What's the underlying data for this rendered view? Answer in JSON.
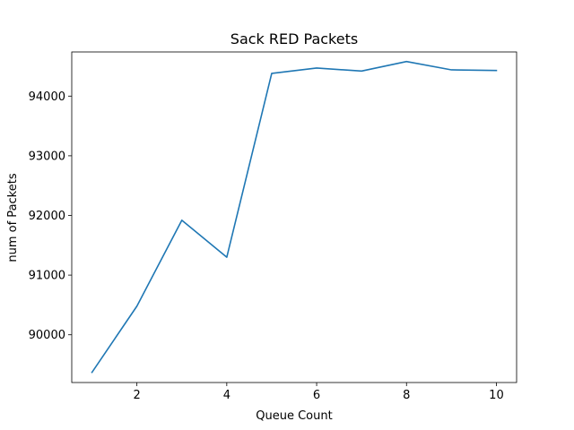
{
  "chart_data": {
    "type": "line",
    "title": "Sack RED Packets",
    "xlabel": "Queue Count",
    "ylabel": "num of Packets",
    "xlim": [
      0.55,
      10.45
    ],
    "ylim": [
      89200,
      94740
    ],
    "xticks": [
      2,
      4,
      6,
      8,
      10
    ],
    "yticks": [
      90000,
      91000,
      92000,
      93000,
      94000
    ],
    "grid": false,
    "series": [
      {
        "color": "#1f77b4",
        "x": [
          1,
          2,
          3,
          4,
          5,
          6,
          7,
          8,
          9,
          10
        ],
        "y": [
          89370,
          90480,
          91920,
          91300,
          94380,
          94470,
          94420,
          94580,
          94440,
          94430
        ]
      }
    ]
  }
}
